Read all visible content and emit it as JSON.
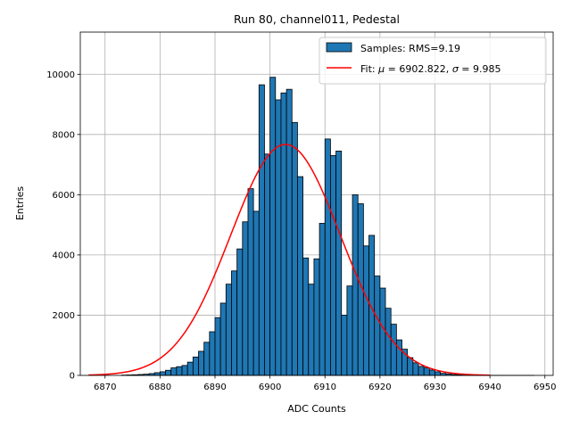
{
  "chart_data": {
    "type": "bar",
    "title": "Run 80, channel011, Pedestal",
    "xlabel": "ADC Counts",
    "ylabel": "Entries",
    "xlim": [
      6865.5,
      6951.5
    ],
    "ylim": [
      0,
      11400
    ],
    "xticks": [
      6870,
      6880,
      6890,
      6900,
      6910,
      6920,
      6930,
      6940,
      6950
    ],
    "yticks": [
      0,
      2000,
      4000,
      6000,
      8000,
      10000
    ],
    "grid": true,
    "legend_position": "top-right",
    "legend": [
      {
        "type": "patch",
        "label": "Samples: RMS=9.19"
      },
      {
        "type": "line",
        "label_prefix": "Fit: ",
        "mu_symbol": "μ",
        "mu_text": " = 6902.822, ",
        "sigma_symbol": "σ",
        "sigma_text": " = 9.985"
      }
    ],
    "colors": {
      "bars": "#1f77b4",
      "bar_edge": "#000000",
      "fit": "#ff0000",
      "grid": "#b0b0b0"
    },
    "histogram": {
      "bin_width": 1,
      "bin_left_edges": [
        6873,
        6874,
        6875,
        6876,
        6877,
        6878,
        6879,
        6880,
        6881,
        6882,
        6883,
        6884,
        6885,
        6886,
        6887,
        6888,
        6889,
        6890,
        6891,
        6892,
        6893,
        6894,
        6895,
        6896,
        6897,
        6898,
        6899,
        6900,
        6901,
        6902,
        6903,
        6904,
        6905,
        6906,
        6907,
        6908,
        6909,
        6910,
        6911,
        6912,
        6913,
        6914,
        6915,
        6916,
        6917,
        6918,
        6919,
        6920,
        6921,
        6922,
        6923,
        6924,
        6925,
        6926,
        6927,
        6928,
        6929,
        6930,
        6931,
        6932,
        6933,
        6934,
        6935,
        6936,
        6937,
        6938,
        6939,
        6940,
        6941,
        6942,
        6943,
        6944,
        6945,
        6946,
        6947
      ],
      "counts": [
        10,
        15,
        20,
        30,
        40,
        60,
        90,
        120,
        170,
        250,
        290,
        330,
        440,
        610,
        800,
        1100,
        1450,
        1920,
        2400,
        3030,
        3470,
        4200,
        5100,
        6200,
        5450,
        9650,
        7350,
        9900,
        9150,
        9380,
        9500,
        8400,
        6600,
        3900,
        3030,
        3870,
        5050,
        7850,
        7300,
        7450,
        2000,
        2970,
        6000,
        5700,
        4300,
        4650,
        3300,
        2900,
        2230,
        1700,
        1180,
        870,
        590,
        420,
        300,
        250,
        180,
        120,
        70,
        50,
        30,
        20,
        15,
        10,
        8,
        5,
        4,
        3,
        2,
        2,
        1,
        1,
        1,
        1,
        1
      ]
    },
    "fit": {
      "mu": 6902.822,
      "sigma": 9.985,
      "amplitude": 7670,
      "x_range": [
        6867,
        6940
      ]
    }
  }
}
